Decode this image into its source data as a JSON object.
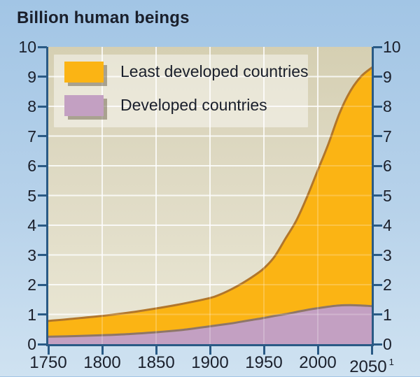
{
  "title": "Billion human beings",
  "legend": {
    "items": [
      {
        "label": "Least developed countries",
        "swatch_color": "#FBB414"
      },
      {
        "label": "Developed countries",
        "swatch_color": "#C3A0C2"
      }
    ]
  },
  "axes": {
    "y_tick_labels": [
      "0",
      "1",
      "2",
      "3",
      "4",
      "5",
      "6",
      "7",
      "8",
      "9",
      "10"
    ],
    "x_tick_labels": [
      "1750",
      "1800",
      "1850",
      "1900",
      "1950",
      "2000",
      "2050"
    ],
    "footnote_marker": "1"
  },
  "chart_data": {
    "type": "area",
    "title": "Billion human beings",
    "ylabel": "Billion human beings",
    "xlim": [
      1750,
      2050
    ],
    "ylim": [
      0,
      10
    ],
    "x_ticks": [
      1750,
      1800,
      1850,
      1900,
      1950,
      2000,
      2050
    ],
    "y_ticks": [
      0,
      1,
      2,
      3,
      4,
      5,
      6,
      7,
      8,
      9,
      10
    ],
    "grid": true,
    "legend_position": "top-left",
    "footnote_marker": "1",
    "x": [
      1750,
      1775,
      1800,
      1825,
      1850,
      1875,
      1900,
      1910,
      1920,
      1930,
      1940,
      1950,
      1960,
      1970,
      1980,
      1990,
      2000,
      2010,
      2020,
      2030,
      2040,
      2050
    ],
    "series": [
      {
        "name": "Least developed countries",
        "note": "drawn stacked over developed countries; top edge equals world total in billions",
        "fill": "#FBB414",
        "stroke": "#B1762B",
        "values": [
          0.78,
          0.86,
          0.95,
          1.06,
          1.2,
          1.36,
          1.55,
          1.68,
          1.85,
          2.05,
          2.28,
          2.55,
          2.95,
          3.55,
          4.15,
          4.95,
          5.85,
          6.75,
          7.75,
          8.5,
          9.0,
          9.3
        ]
      },
      {
        "name": "Developed countries",
        "fill": "#C3A0C2",
        "stroke": "#8E7668",
        "values": [
          0.25,
          0.27,
          0.3,
          0.34,
          0.4,
          0.48,
          0.6,
          0.65,
          0.7,
          0.76,
          0.82,
          0.88,
          0.95,
          1.01,
          1.08,
          1.15,
          1.21,
          1.26,
          1.3,
          1.31,
          1.3,
          1.28
        ]
      }
    ]
  },
  "colors": {
    "page_bg_top": "#a2c5e5",
    "page_bg_mid": "#b7d2ea",
    "page_bg_bottom": "#cfe2f1",
    "plot_bg_top": "#d5cfb2",
    "plot_bg_mid": "#ddd8c1",
    "plot_bg_bottom": "#eae7d5",
    "axis": "#2a5a85",
    "text": "#1a1f2b",
    "grid": "#ffffff",
    "legend_panel": "rgba(255,255,255,0.45)"
  }
}
